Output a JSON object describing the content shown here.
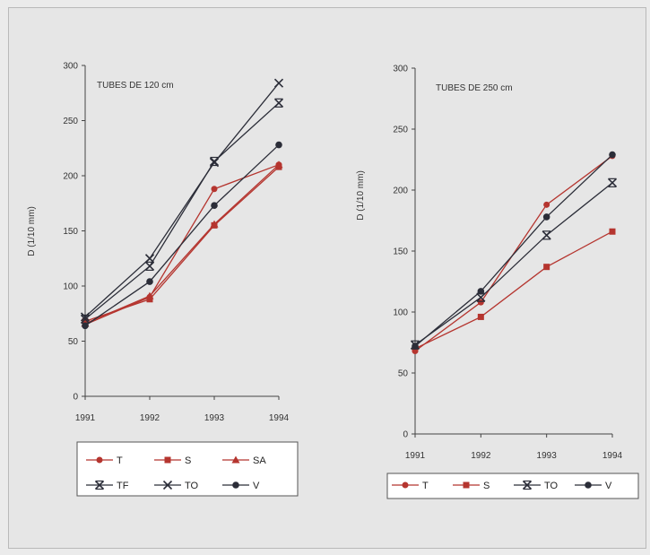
{
  "colors": {
    "red": "#b5352f",
    "dark": "#2b2d38",
    "axis": "#444444"
  },
  "chart_data": [
    {
      "type": "line",
      "title": "TUBES DE 120 cm",
      "xlabel": "",
      "ylabel": "D (1/10 mm)",
      "categories": [
        "1991",
        "1992",
        "1993",
        "1994"
      ],
      "yticks": [
        "0",
        "50",
        "100",
        "150",
        "200",
        "250",
        "300"
      ],
      "ylim": [
        0,
        300
      ],
      "series": [
        {
          "name": "T",
          "color": "red",
          "marker": "circle",
          "values": [
            65,
            90,
            188,
            210
          ]
        },
        {
          "name": "S",
          "color": "red",
          "marker": "square",
          "values": [
            68,
            88,
            155,
            208
          ]
        },
        {
          "name": "SA",
          "color": "red",
          "marker": "triangle",
          "values": [
            66,
            91,
            156,
            210
          ]
        },
        {
          "name": "TF",
          "color": "dark",
          "marker": "xbar",
          "values": [
            70,
            118,
            213,
            266
          ]
        },
        {
          "name": "TO",
          "color": "dark",
          "marker": "x",
          "values": [
            72,
            125,
            212,
            284
          ]
        },
        {
          "name": "V",
          "color": "dark",
          "marker": "dot",
          "values": [
            64,
            104,
            173,
            228
          ]
        }
      ],
      "legend": "bottom"
    },
    {
      "type": "line",
      "title": "TUBES DE 250 cm",
      "xlabel": "",
      "ylabel": "D (1/10 mm)",
      "categories": [
        "1991",
        "1992",
        "1993",
        "1994"
      ],
      "yticks": [
        "0",
        "50",
        "100",
        "150",
        "200",
        "250",
        "300"
      ],
      "ylim": [
        0,
        300
      ],
      "series": [
        {
          "name": "T",
          "color": "red",
          "marker": "circle",
          "values": [
            68,
            108,
            188,
            228
          ]
        },
        {
          "name": "S",
          "color": "red",
          "marker": "square",
          "values": [
            70,
            96,
            137,
            166
          ]
        },
        {
          "name": "TO",
          "color": "dark",
          "marker": "xbar",
          "values": [
            73,
            112,
            163,
            206
          ]
        },
        {
          "name": "V",
          "color": "dark",
          "marker": "dot",
          "values": [
            72,
            117,
            178,
            229
          ]
        }
      ],
      "legend": "bottom"
    }
  ]
}
